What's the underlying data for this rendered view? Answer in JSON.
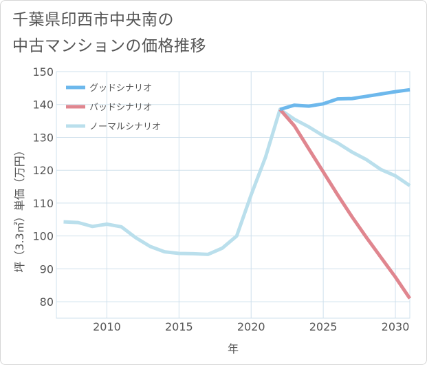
{
  "title_lines": [
    "千葉県印西市中央南の",
    "中古マンションの価格推移"
  ],
  "chart_data": {
    "type": "line",
    "title": "千葉県印西市中央南の中古マンションの価格推移",
    "xlabel": "年",
    "ylabel": "坪（3.3㎡）単価（万円）",
    "xlim": [
      2006.5,
      2031
    ],
    "ylim": [
      75,
      150
    ],
    "xticks": [
      2010,
      2015,
      2020,
      2025,
      2030
    ],
    "yticks": [
      80,
      90,
      100,
      110,
      120,
      130,
      140,
      150
    ],
    "legend_position": "top-left",
    "series": [
      {
        "name": "グッドシナリオ",
        "color": "#6db8ec",
        "x": [
          2022,
          2023,
          2024,
          2025,
          2026,
          2027,
          2028,
          2029,
          2030,
          2031
        ],
        "y": [
          138.5,
          139.8,
          139.5,
          140.2,
          141.7,
          141.8,
          142.5,
          143.2,
          143.9,
          144.5
        ]
      },
      {
        "name": "バッドシナリオ",
        "color": "#e0868f",
        "x": [
          2022,
          2023,
          2024,
          2025,
          2026,
          2027,
          2028,
          2029,
          2030,
          2031
        ],
        "y": [
          138.5,
          133.5,
          126.5,
          119.5,
          112.5,
          105.8,
          99.5,
          93.5,
          87.5,
          81.0
        ]
      },
      {
        "name": "ノーマルシナリオ",
        "color": "#badfec",
        "x": [
          2007,
          2008,
          2009,
          2010,
          2011,
          2012,
          2013,
          2014,
          2015,
          2016,
          2017,
          2018,
          2019,
          2020,
          2021,
          2022,
          2023,
          2024,
          2025,
          2026,
          2027,
          2028,
          2029,
          2030,
          2031
        ],
        "y": [
          104.3,
          104.1,
          102.9,
          103.6,
          102.8,
          99.5,
          96.8,
          95.2,
          94.7,
          94.6,
          94.4,
          96.3,
          100.0,
          112.5,
          124.0,
          138.5,
          135.5,
          133.2,
          130.5,
          128.3,
          125.5,
          123.2,
          120.2,
          118.3,
          115.3
        ]
      }
    ]
  }
}
